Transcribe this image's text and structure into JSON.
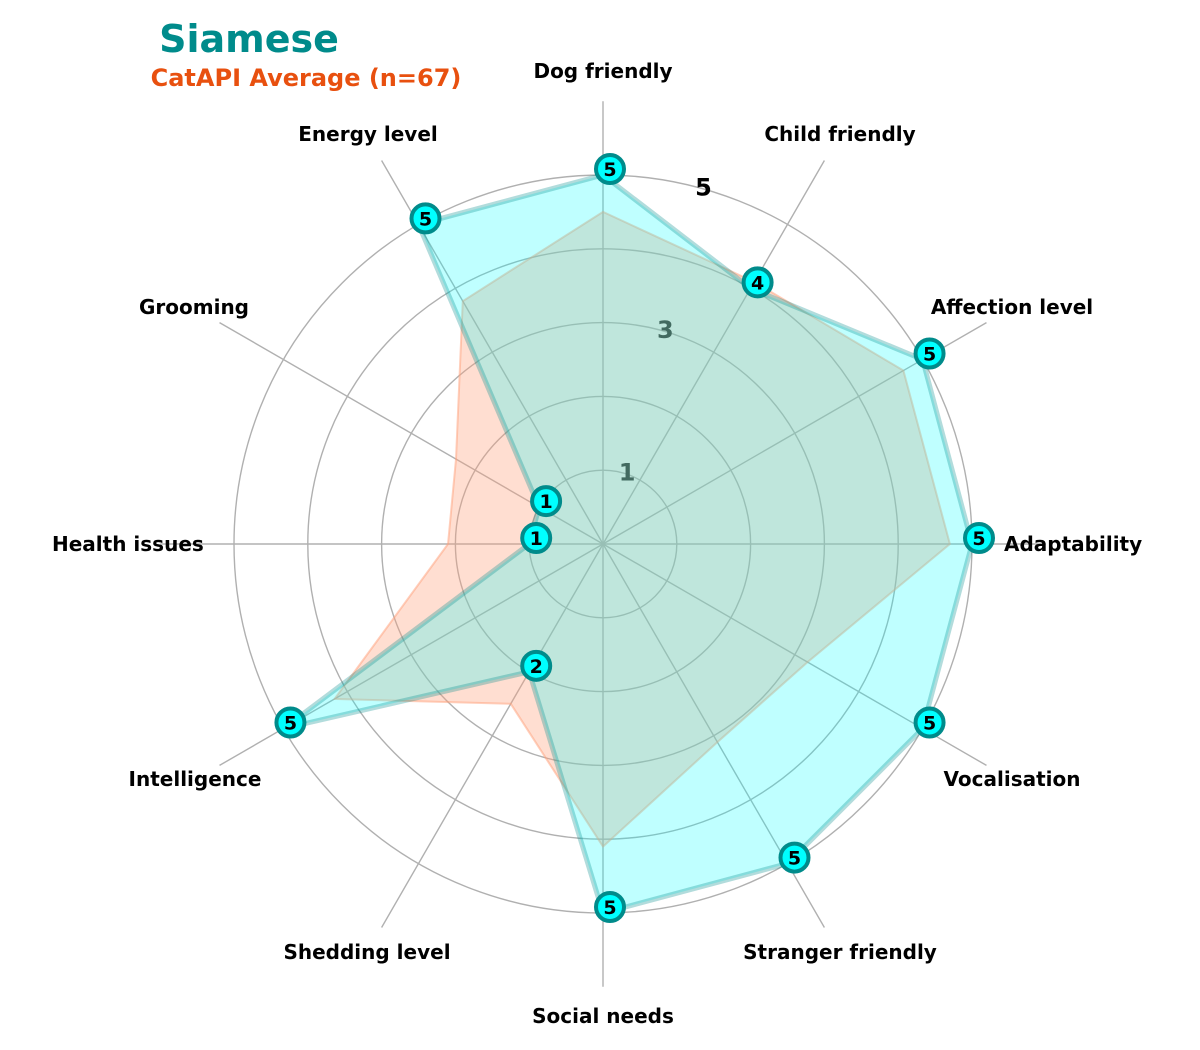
{
  "chart_data": {
    "type": "radar",
    "title": "Siamese",
    "subtitle": "CatAPI Average (n=67)",
    "axes": [
      "Adaptability",
      "Affection level",
      "Child friendly",
      "Dog friendly",
      "Energy level",
      "Grooming",
      "Health issues",
      "Intelligence",
      "Shedding level",
      "Social needs",
      "Stranger friendly",
      "Vocalisation"
    ],
    "series": [
      {
        "values": [
          5,
          5,
          4,
          5,
          5,
          1,
          1,
          5,
          2,
          5,
          5,
          5
        ],
        "color": "#00ffff",
        "edge_color": "#008b8b"
      },
      {
        "values": [
          4.7,
          4.7,
          4.1,
          4.5,
          3.8,
          2.3,
          2.1,
          4.2,
          2.5,
          4.1,
          3.1,
          3.2
        ],
        "color": "#ffa07a"
      }
    ],
    "range": [
      0,
      5
    ],
    "ring_ticks": [
      "1",
      "3",
      "5"
    ],
    "grid": true,
    "colors": {
      "title": "#008b8b",
      "subtitle": "#e8500f",
      "grid": "#b0b0b0"
    }
  }
}
